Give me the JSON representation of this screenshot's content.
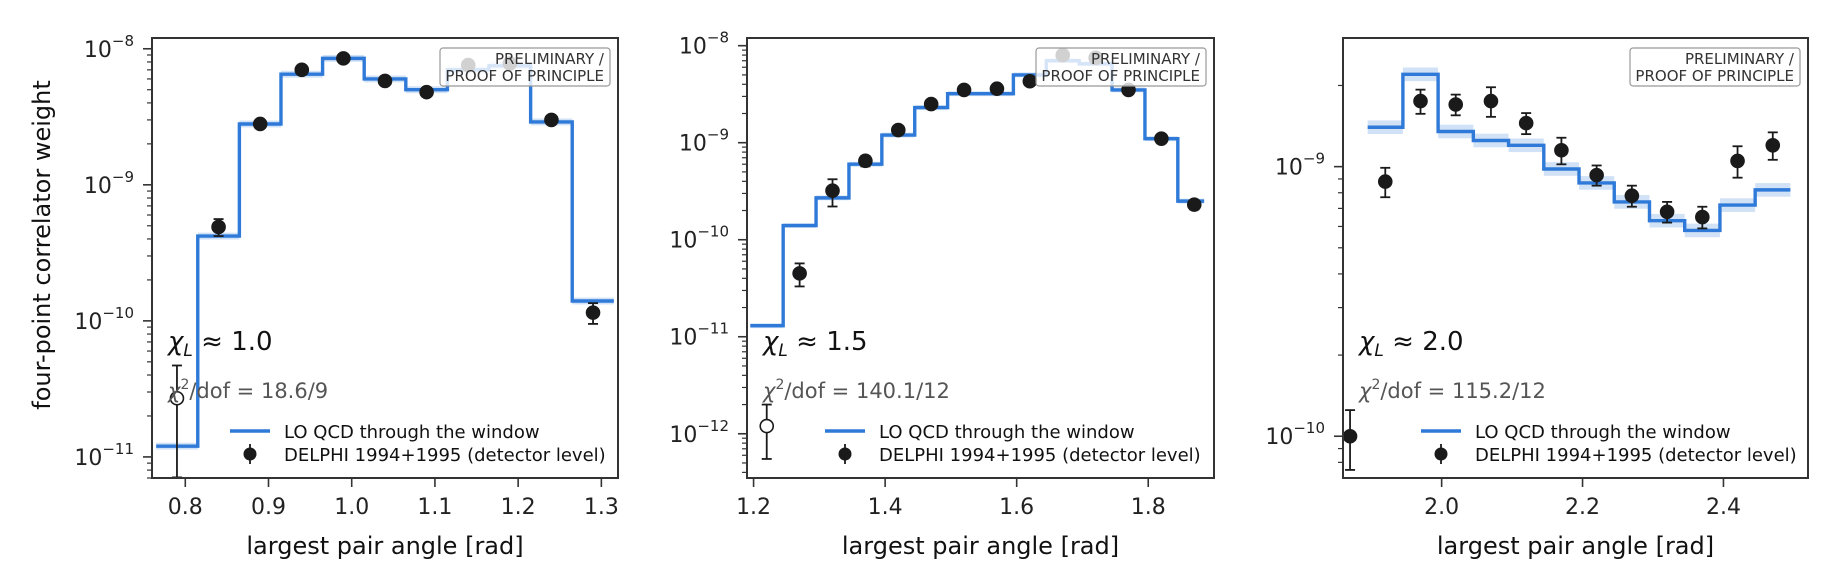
{
  "colors": {
    "model": "#2f7ad8",
    "data": "#1a1a1a",
    "axis": "#333333",
    "badge_border": "#999999"
  },
  "figure": {
    "ylabel": "four-point correlator weight"
  },
  "legend": {
    "model_label": "LO QCD through the window",
    "data_label": "DELPHI 1994+1995 (detector level)"
  },
  "badge": {
    "line1": "PRELIMINARY /",
    "line2": "PROOF OF PRINCIPLE"
  },
  "chart_data": [
    {
      "type": "line",
      "scale": "log-y",
      "xlabel": "largest pair angle [rad]",
      "xlim": [
        0.76,
        1.32
      ],
      "ylim": [
        7e-12,
        1.2e-08
      ],
      "xticks": [
        0.8,
        0.9,
        1.0,
        1.1,
        1.2,
        1.3
      ],
      "xtick_labels": [
        "0.8",
        "0.9",
        "1.0",
        "1.1",
        "1.2",
        "1.3"
      ],
      "yticks": [
        1e-11,
        1e-10,
        1e-09,
        1e-08
      ],
      "ytick_bases": [
        "10",
        "10",
        "10",
        "10"
      ],
      "ytick_exps": [
        "−11",
        "−10",
        "−9",
        "−8"
      ],
      "chi_L": "≈ 1.0",
      "chi2_dof": "18.6/9",
      "model_edges": [
        0.765,
        0.815,
        0.865,
        0.915,
        0.965,
        1.015,
        1.065,
        1.115,
        1.165,
        1.215,
        1.265,
        1.315
      ],
      "model_values": [
        1.2e-11,
        4.2e-10,
        2.8e-09,
        6.5e-09,
        8.5e-09,
        6e-09,
        5e-09,
        7e-09,
        7.5e-09,
        2.9e-09,
        1.4e-10
      ],
      "data_x": [
        0.79,
        0.84,
        0.89,
        0.94,
        0.99,
        1.04,
        1.09,
        1.14,
        1.19,
        1.24,
        1.29
      ],
      "data_y": [
        2.7e-11,
        4.9e-10,
        2.8e-09,
        7e-09,
        8.5e-09,
        5.8e-09,
        4.8e-09,
        7.6e-09,
        7.8e-09,
        3e-09,
        1.15e-10
      ],
      "data_err_lo": [
        2.2e-11,
        7e-11,
        1.5e-10,
        3e-10,
        3e-10,
        2.5e-10,
        2.2e-10,
        3e-10,
        3e-10,
        1.5e-10,
        2e-11
      ],
      "data_err_hi": [
        2e-11,
        7e-11,
        1.5e-10,
        3e-10,
        3e-10,
        2.5e-10,
        2.2e-10,
        3e-10,
        3e-10,
        1.5e-10,
        2e-11
      ],
      "data_hollow": [
        true,
        false,
        false,
        false,
        false,
        false,
        false,
        false,
        false,
        false,
        false
      ]
    },
    {
      "type": "line",
      "scale": "log-y",
      "xlabel": "largest pair angle [rad]",
      "xlim": [
        1.19,
        1.9
      ],
      "ylim": [
        3.5e-13,
        1.2e-08
      ],
      "xticks": [
        1.2,
        1.4,
        1.6,
        1.8
      ],
      "xtick_labels": [
        "1.2",
        "1.4",
        "1.6",
        "1.8"
      ],
      "yticks": [
        1e-12,
        1e-11,
        1e-10,
        1e-09,
        1e-08
      ],
      "ytick_bases": [
        "10",
        "10",
        "10",
        "10",
        "10"
      ],
      "ytick_exps": [
        "−12",
        "−11",
        "−10",
        "−9",
        "−8"
      ],
      "chi_L": "≈ 1.5",
      "chi2_dof": "140.1/12",
      "model_edges": [
        1.195,
        1.245,
        1.295,
        1.345,
        1.395,
        1.445,
        1.495,
        1.545,
        1.595,
        1.645,
        1.695,
        1.745,
        1.795,
        1.845,
        1.885
      ],
      "model_values": [
        1.3e-11,
        1.4e-10,
        2.7e-10,
        6e-10,
        1.2e-09,
        2.3e-09,
        3.2e-09,
        3.2e-09,
        5e-09,
        7e-09,
        6.5e-09,
        3.5e-09,
        1.1e-09,
        2.5e-10
      ],
      "data_x": [
        1.22,
        1.27,
        1.32,
        1.37,
        1.42,
        1.47,
        1.52,
        1.57,
        1.62,
        1.67,
        1.72,
        1.77,
        1.82,
        1.87
      ],
      "data_y": [
        1.2e-12,
        4.5e-11,
        3.2e-10,
        6.5e-10,
        1.35e-09,
        2.5e-09,
        3.5e-09,
        3.6e-09,
        4.3e-09,
        8e-09,
        7.5e-09,
        3.5e-09,
        1.1e-09,
        2.3e-10
      ],
      "data_err_lo": [
        6.5e-13,
        1.2e-11,
        1e-10,
        8e-11,
        1.2e-10,
        1.8e-10,
        2.5e-10,
        2.5e-10,
        3e-10,
        5e-10,
        5e-10,
        2.5e-10,
        9e-11,
        2.5e-11
      ],
      "data_err_hi": [
        8e-13,
        1.2e-11,
        1e-10,
        8e-11,
        1.2e-10,
        1.8e-10,
        2.5e-10,
        2.5e-10,
        3e-10,
        5e-10,
        5e-10,
        2.5e-10,
        9e-11,
        2.5e-11
      ],
      "data_hollow": [
        true,
        false,
        false,
        false,
        false,
        false,
        false,
        false,
        false,
        false,
        false,
        false,
        false,
        false
      ]
    },
    {
      "type": "line",
      "scale": "log-y",
      "xlabel": "largest pair angle [rad]",
      "xlim": [
        1.86,
        2.52
      ],
      "ylim": [
        7e-11,
        3e-09
      ],
      "xticks": [
        2.0,
        2.2,
        2.4
      ],
      "xtick_labels": [
        "2.0",
        "2.2",
        "2.4"
      ],
      "yticks": [
        1e-10,
        1e-09
      ],
      "ytick_bases": [
        "10",
        "10"
      ],
      "ytick_exps": [
        "−10",
        "−9"
      ],
      "chi_L": "≈ 2.0",
      "chi2_dof": "115.2/12",
      "model_edges": [
        1.895,
        1.945,
        1.995,
        2.045,
        2.095,
        2.145,
        2.195,
        2.245,
        2.295,
        2.345,
        2.395,
        2.445,
        2.495
      ],
      "model_values": [
        1.4e-09,
        2.2e-09,
        1.35e-09,
        1.25e-09,
        1.2e-09,
        9.8e-10,
        8.7e-10,
        7.4e-10,
        6.3e-10,
        5.8e-10,
        7.2e-10,
        8.2e-10
      ],
      "data_x": [
        1.87,
        1.92,
        1.97,
        2.02,
        2.07,
        2.12,
        2.17,
        2.22,
        2.27,
        2.32,
        2.37,
        2.42,
        2.47
      ],
      "data_y": [
        1e-10,
        8.8e-10,
        1.75e-09,
        1.7e-09,
        1.75e-09,
        1.45e-09,
        1.15e-09,
        9.3e-10,
        7.8e-10,
        6.8e-10,
        6.5e-10,
        1.05e-09,
        1.2e-09
      ],
      "data_err_lo": [
        2.5e-11,
        1.1e-10,
        1.8e-10,
        1.5e-10,
        2.2e-10,
        1.3e-10,
        1.3e-10,
        8e-11,
        7e-11,
        6e-11,
        6e-11,
        1.4e-10,
        1.4e-10
      ],
      "data_err_hi": [
        2.5e-11,
        1.1e-10,
        1.8e-10,
        1.5e-10,
        2.2e-10,
        1.3e-10,
        1.3e-10,
        8e-11,
        7e-11,
        6e-11,
        6e-11,
        1.4e-10,
        1.4e-10
      ],
      "data_hollow": [
        false,
        false,
        false,
        false,
        false,
        false,
        false,
        false,
        false,
        false,
        false,
        false,
        false
      ]
    }
  ]
}
